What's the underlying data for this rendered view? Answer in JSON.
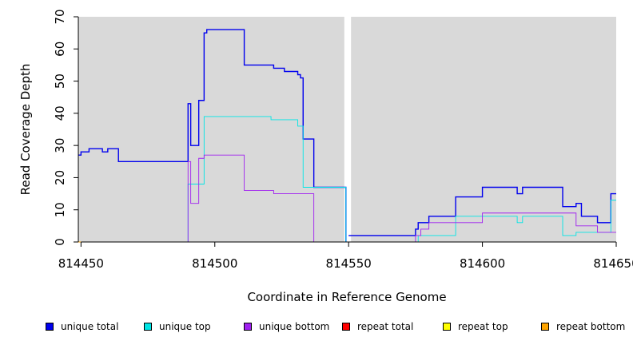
{
  "chart_data": {
    "type": "line",
    "title": "",
    "xlabel": "Coordinate in Reference Genome",
    "ylabel": "Read Coverage Depth",
    "xlim": [
      814449,
      814650
    ],
    "ylim": [
      0,
      70
    ],
    "grid": false,
    "legend_position": "bottom",
    "background": "#d9d9d9",
    "x_ticks": [
      814450,
      814500,
      814550,
      814600,
      814650
    ],
    "x_tick_labels": [
      "814450",
      "814500",
      "814550",
      "814600",
      "814650"
    ],
    "y_ticks": [
      0,
      10,
      20,
      30,
      40,
      50,
      60,
      70
    ],
    "y_tick_labels": [
      "0",
      "10",
      "20",
      "30",
      "40",
      "50",
      "60",
      "70"
    ],
    "gap": [
      814549,
      814550
    ],
    "series": [
      {
        "name": "unique total",
        "color": "#0000ee",
        "points": [
          [
            814449,
            27
          ],
          [
            814450,
            28
          ],
          [
            814453,
            29
          ],
          [
            814458,
            28
          ],
          [
            814460,
            29
          ],
          [
            814464,
            25
          ],
          [
            814490,
            43
          ],
          [
            814491,
            30
          ],
          [
            814494,
            44
          ],
          [
            814496,
            65
          ],
          [
            814497,
            66
          ],
          [
            814511,
            55
          ],
          [
            814522,
            54
          ],
          [
            814526,
            53
          ],
          [
            814531,
            52
          ],
          [
            814532,
            51
          ],
          [
            814533,
            32
          ],
          [
            814537,
            17
          ],
          [
            814549,
            0
          ],
          [
            814550,
            2
          ],
          [
            814575,
            4
          ],
          [
            814576,
            6
          ],
          [
            814580,
            8
          ],
          [
            814590,
            14
          ],
          [
            814600,
            17
          ],
          [
            814613,
            15
          ],
          [
            814615,
            17
          ],
          [
            814630,
            11
          ],
          [
            814635,
            12
          ],
          [
            814637,
            8
          ],
          [
            814643,
            6
          ],
          [
            814648,
            15
          ],
          [
            814650,
            15
          ]
        ]
      },
      {
        "name": "unique top",
        "color": "#00e5e5",
        "points": [
          [
            814449,
            0
          ],
          [
            814490,
            18
          ],
          [
            814496,
            39
          ],
          [
            814521,
            38
          ],
          [
            814531,
            36
          ],
          [
            814533,
            17
          ],
          [
            814549,
            0
          ],
          [
            814550,
            0
          ],
          [
            814576,
            2
          ],
          [
            814590,
            8
          ],
          [
            814600,
            8
          ],
          [
            814613,
            6
          ],
          [
            814615,
            8
          ],
          [
            814630,
            2
          ],
          [
            814635,
            3
          ],
          [
            814648,
            13
          ],
          [
            814650,
            13
          ]
        ]
      },
      {
        "name": "unique bottom",
        "color": "#a020f0",
        "points": [
          [
            814449,
            0
          ],
          [
            814490,
            25
          ],
          [
            814491,
            12
          ],
          [
            814494,
            26
          ],
          [
            814496,
            27
          ],
          [
            814511,
            16
          ],
          [
            814522,
            15
          ],
          [
            814537,
            0
          ],
          [
            814549,
            0
          ],
          [
            814550,
            0
          ],
          [
            814575,
            2
          ],
          [
            814577,
            4
          ],
          [
            814580,
            6
          ],
          [
            814600,
            9
          ],
          [
            814635,
            5
          ],
          [
            814643,
            3
          ],
          [
            814650,
            3
          ]
        ]
      },
      {
        "name": "repeat total",
        "color": "#ff0000",
        "points": [
          [
            814449,
            0
          ],
          [
            814549,
            0
          ],
          [
            814550,
            0
          ],
          [
            814650,
            0
          ]
        ]
      },
      {
        "name": "repeat top",
        "color": "#ffff00",
        "points": [
          [
            814449,
            0
          ],
          [
            814549,
            0
          ],
          [
            814550,
            0
          ],
          [
            814650,
            0
          ]
        ]
      },
      {
        "name": "repeat bottom",
        "color": "#ffa500",
        "points": [
          [
            814449,
            0
          ],
          [
            814549,
            0
          ],
          [
            814550,
            0
          ],
          [
            814650,
            0
          ]
        ]
      }
    ]
  }
}
